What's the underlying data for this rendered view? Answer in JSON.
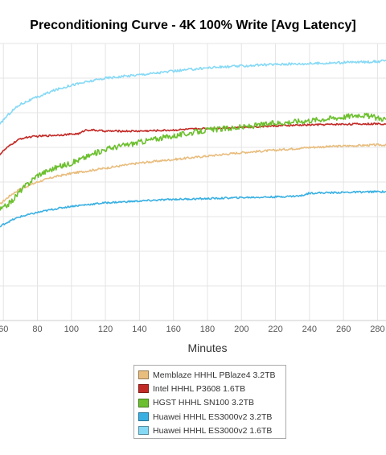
{
  "chart_data": {
    "type": "line",
    "title": "Preconditioning Curve - 4K 100% Write [Avg Latency]",
    "xlabel": "Minutes",
    "ylabel": "",
    "xlim": [
      58,
      285
    ],
    "ylim": [
      0,
      8
    ],
    "grid": true,
    "legend_position": "bottom-center",
    "x_ticks": [
      60,
      80,
      100,
      120,
      140,
      160,
      180,
      200,
      220,
      240,
      260,
      280
    ],
    "x_tick_labels": [
      "60",
      "80",
      "100",
      "120",
      "140",
      "160",
      "180",
      "200",
      "220",
      "240",
      "260",
      "280"
    ],
    "series": [
      {
        "name": "Memblaze HHHL PBlaze4 3.2TB",
        "color": "#e8bd7e",
        "noise": 0.03,
        "x": [
          58,
          60,
          65,
          70,
          80,
          90,
          100,
          120,
          140,
          160,
          180,
          200,
          220,
          240,
          260,
          280,
          285
        ],
        "y": [
          3.35,
          3.45,
          3.65,
          3.8,
          4.0,
          4.15,
          4.25,
          4.4,
          4.55,
          4.65,
          4.75,
          4.85,
          4.92,
          5.0,
          5.04,
          5.07,
          5.07
        ]
      },
      {
        "name": "Intel HHHL P3608 1.6TB",
        "color": "#c22a26",
        "noise": 0.025,
        "x": [
          58,
          60,
          65,
          70,
          75,
          80,
          90,
          100,
          105,
          108,
          112,
          120,
          140,
          160,
          180,
          200,
          220,
          240,
          260,
          280,
          285
        ],
        "y": [
          4.8,
          4.9,
          5.1,
          5.25,
          5.3,
          5.32,
          5.35,
          5.38,
          5.4,
          5.5,
          5.5,
          5.47,
          5.47,
          5.5,
          5.55,
          5.58,
          5.62,
          5.65,
          5.67,
          5.68,
          5.68
        ]
      },
      {
        "name": "HGST HHHL SN100 3.2TB",
        "color": "#6cbf2e",
        "noise": 0.08,
        "x": [
          58,
          60,
          65,
          70,
          80,
          90,
          100,
          110,
          120,
          130,
          140,
          150,
          160,
          180,
          200,
          220,
          240,
          260,
          270,
          280,
          285
        ],
        "y": [
          3.2,
          3.25,
          3.45,
          3.75,
          4.2,
          4.4,
          4.55,
          4.75,
          4.95,
          5.05,
          5.15,
          5.25,
          5.33,
          5.5,
          5.58,
          5.7,
          5.78,
          5.88,
          5.95,
          5.85,
          5.82
        ]
      },
      {
        "name": "Huawei HHHL ES3000v2 3.2TB",
        "color": "#3ab0e2",
        "noise": 0.025,
        "x": [
          58,
          60,
          65,
          70,
          80,
          90,
          100,
          120,
          140,
          160,
          180,
          200,
          220,
          235,
          240,
          260,
          280,
          285
        ],
        "y": [
          2.7,
          2.78,
          2.9,
          3.0,
          3.12,
          3.22,
          3.3,
          3.4,
          3.45,
          3.5,
          3.52,
          3.55,
          3.57,
          3.6,
          3.68,
          3.7,
          3.72,
          3.72
        ]
      },
      {
        "name": "Huawei HHHL ES3000v2 1.6TB",
        "color": "#86d9f5",
        "noise": 0.035,
        "x": [
          58,
          60,
          65,
          70,
          80,
          90,
          100,
          110,
          120,
          140,
          160,
          180,
          200,
          220,
          240,
          260,
          280,
          285
        ],
        "y": [
          5.65,
          5.8,
          6.05,
          6.25,
          6.45,
          6.65,
          6.8,
          6.9,
          7.0,
          7.1,
          7.2,
          7.3,
          7.35,
          7.4,
          7.42,
          7.45,
          7.48,
          7.5
        ]
      }
    ]
  }
}
